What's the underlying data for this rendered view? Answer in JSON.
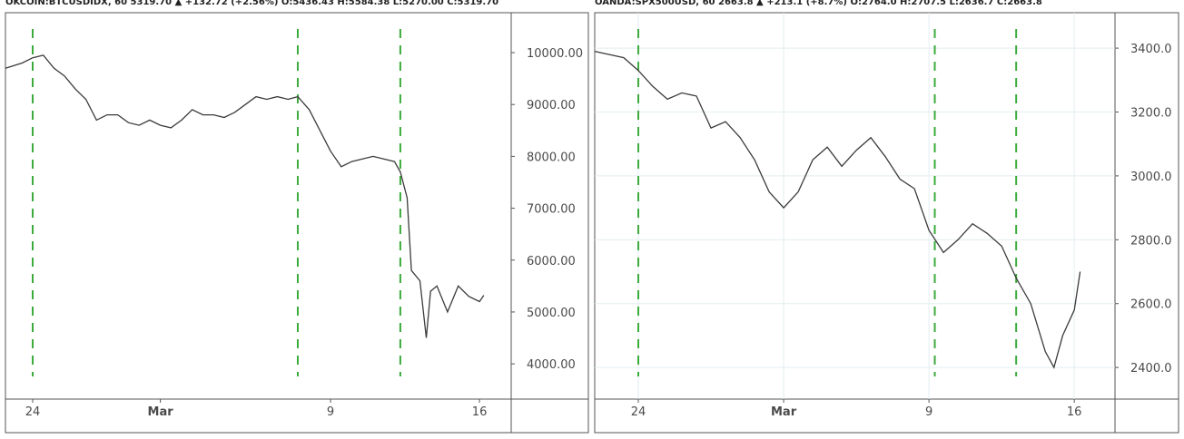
{
  "chart_data": [
    {
      "type": "line",
      "title": "OKCOIN:BTCUSDIDX, 60 5319.70 ▲ +132.72 (+2.56%) O:5436.43 H:5584.38 L:5270.00 C:5319.70",
      "x": [
        -1.28,
        -0.5,
        0,
        0.5,
        1,
        1.5,
        2,
        2.5,
        3,
        3.5,
        4,
        4.5,
        5,
        5.5,
        6,
        6.5,
        7,
        7.5,
        8,
        8.5,
        9,
        9.5,
        10,
        10.5,
        11,
        11.5,
        12,
        12.46,
        13,
        13.5,
        14,
        14.5,
        15,
        15.5,
        16,
        16.5,
        17,
        17.28,
        17.6,
        17.8,
        18.2,
        18.5,
        18.7,
        19,
        19.5,
        20,
        20.5,
        21,
        21.2
      ],
      "values": [
        9700,
        9800,
        9900,
        9950,
        9700,
        9550,
        9300,
        9100,
        8700,
        8800,
        8800,
        8650,
        8600,
        8700,
        8600,
        8550,
        8700,
        8900,
        8800,
        8800,
        8750,
        8850,
        9000,
        9150,
        9100,
        9150,
        9100,
        9150,
        8900,
        8500,
        8100,
        7800,
        7900,
        7950,
        8000,
        7950,
        7900,
        7700,
        7200,
        5800,
        5600,
        4500,
        5400,
        5500,
        5000,
        5500,
        5300,
        5200,
        5320
      ],
      "color": "#3b3b3b",
      "xlim": [
        -1.28,
        22.49
      ],
      "ylim": [
        3320,
        10770
      ],
      "xticks": [
        {
          "value": 0,
          "label": "24"
        },
        {
          "value": 6,
          "label": "Mar"
        },
        {
          "value": 14,
          "label": "9"
        },
        {
          "value": 21,
          "label": "16"
        }
      ],
      "yticks": [
        {
          "value": 4000,
          "label": "4000.00"
        },
        {
          "value": 5000,
          "label": "5000.00"
        },
        {
          "value": 6000,
          "label": "6000.00"
        },
        {
          "value": 7000,
          "label": "7000.00"
        },
        {
          "value": 8000,
          "label": "8000.00"
        },
        {
          "value": 9000,
          "label": "9000.00"
        },
        {
          "value": 10000,
          "label": "10000.00"
        }
      ],
      "markers": [
        0,
        12.46,
        17.28
      ],
      "marker_color": "#3cab3c",
      "grid": false
    },
    {
      "type": "line",
      "title": "OANDA:SPX500USD, 60 2663.8 ▲ +213.1 (+8.7%) O:2764.0 H:2707.5 L:2636.7 C:2663.8",
      "x": [
        -1.5,
        -1,
        -0.5,
        0,
        0.5,
        1,
        1.5,
        2,
        2.5,
        3,
        3.5,
        4,
        4.5,
        5,
        5.5,
        6,
        6.5,
        7,
        7.5,
        8,
        8.5,
        9,
        9.5,
        10,
        10.5,
        11,
        11.5,
        12,
        12.5,
        13,
        13.5,
        14,
        14.3,
        14.6,
        15,
        15.2
      ],
      "values": [
        3390,
        3380,
        3370,
        3330,
        3280,
        3240,
        3260,
        3250,
        3150,
        3170,
        3120,
        3050,
        2950,
        2900,
        2950,
        3050,
        3090,
        3030,
        3080,
        3120,
        3060,
        2990,
        2960,
        2830,
        2760,
        2800,
        2850,
        2820,
        2780,
        2680,
        2600,
        2450,
        2400,
        2500,
        2580,
        2700
      ],
      "color": "#3b3b3b",
      "xlim": [
        -1.5,
        16.4
      ],
      "ylim": [
        2301,
        3511
      ],
      "xticks": [
        {
          "value": 0,
          "label": "24"
        },
        {
          "value": 5,
          "label": "Mar"
        },
        {
          "value": 10,
          "label": "9"
        },
        {
          "value": 15,
          "label": "16"
        }
      ],
      "yticks": [
        {
          "value": 2400,
          "label": "2400.0"
        },
        {
          "value": 2600,
          "label": "2600.0"
        },
        {
          "value": 2800,
          "label": "2800.0"
        },
        {
          "value": 3000,
          "label": "3000.0"
        },
        {
          "value": 3200,
          "label": "3200.0"
        },
        {
          "value": 3400,
          "label": "3400.0"
        }
      ],
      "markers": [
        0,
        10.2,
        13
      ],
      "marker_color": "#3cab3c",
      "grid": true
    }
  ]
}
